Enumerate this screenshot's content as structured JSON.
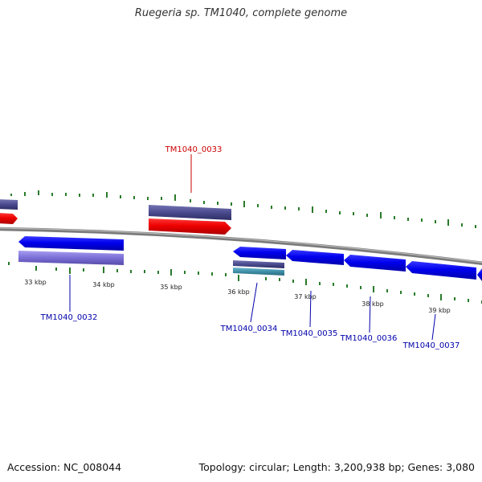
{
  "title": "Ruegeria sp. TM1040, complete genome",
  "footer": {
    "accession": "Accession: NC_008044",
    "summary": "Topology: circular; Length: 3,200,938 bp; Genes: 3,080"
  },
  "ticks": [
    "33 kbp",
    "34 kbp",
    "35 kbp",
    "36 kbp",
    "37 kbp",
    "38 kbp",
    "39 kbp"
  ],
  "genes": [
    {
      "id": "TM1040_0032",
      "color": "#0000aa",
      "strand": "reverse"
    },
    {
      "id": "TM1040_0033",
      "color": "#cc0000",
      "strand": "forward"
    },
    {
      "id": "TM1040_0034",
      "color": "#0000aa",
      "strand": "reverse"
    },
    {
      "id": "TM1040_0035",
      "color": "#0000aa",
      "strand": "reverse"
    },
    {
      "id": "TM1040_0036",
      "color": "#0000aa",
      "strand": "reverse"
    },
    {
      "id": "TM1040_0037",
      "color": "#0000aa",
      "strand": "reverse"
    }
  ],
  "colors": {
    "backbone": "#8a8a8a",
    "tick": "#2a7a2a",
    "gene_reverse": "#0000ee",
    "gene_forward": "#ee0000",
    "cog_purple": "#4a4a8e",
    "cog_lavender": "#7b6ed6",
    "cog_teal": "#3f8fa8"
  }
}
